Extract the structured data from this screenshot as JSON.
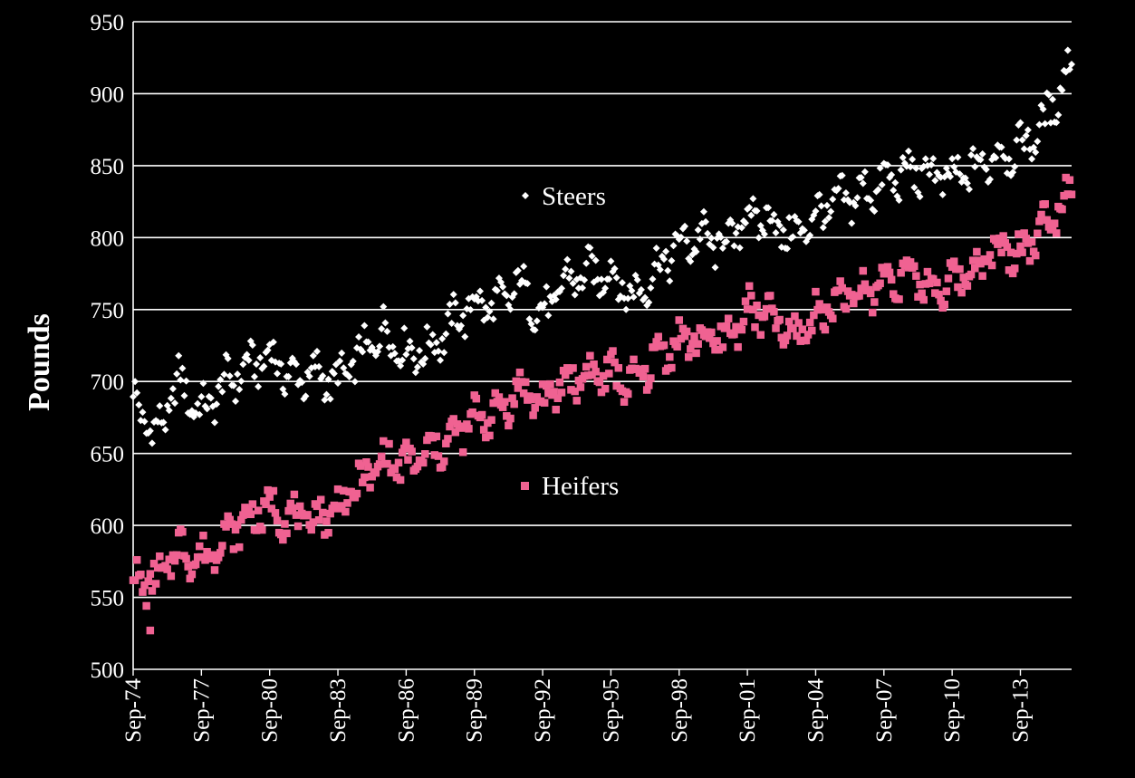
{
  "chart_data": {
    "type": "scatter",
    "ylabel": "Pounds",
    "ylim": [
      500,
      950
    ],
    "yticks": [
      "500",
      "550",
      "600",
      "650",
      "700",
      "750",
      "800",
      "850",
      "900",
      "950"
    ],
    "xticks": [
      "Sep-74",
      "Sep-77",
      "Sep-80",
      "Sep-83",
      "Sep-86",
      "Sep-89",
      "Sep-92",
      "Sep-95",
      "Sep-98",
      "Sep-01",
      "Sep-04",
      "Sep-07",
      "Sep-10",
      "Sep-13"
    ],
    "grid": true,
    "x": "Monthly, Sep-74 to Dec-15 (one point per month)",
    "series": [
      {
        "name": "Steers",
        "color": "#ffffff",
        "marker": "diamond",
        "legend_label": "Steers",
        "monthly_anchor_values": [
          [
            "Sep-74",
            688
          ],
          [
            "Sep-75",
            662
          ],
          [
            "Sep-76",
            700
          ],
          [
            "Sep-77",
            678
          ],
          [
            "Sep-78",
            698
          ],
          [
            "Sep-79",
            710
          ],
          [
            "Sep-80",
            718
          ],
          [
            "Sep-81",
            702
          ],
          [
            "Sep-82",
            705
          ],
          [
            "Sep-83",
            700
          ],
          [
            "Sep-84",
            718
          ],
          [
            "Sep-85",
            735
          ],
          [
            "Sep-86",
            720
          ],
          [
            "Sep-87",
            722
          ],
          [
            "Sep-88",
            740
          ],
          [
            "Sep-89",
            755
          ],
          [
            "Sep-90",
            752
          ],
          [
            "Sep-91",
            768
          ],
          [
            "Sep-92",
            745
          ],
          [
            "Sep-93",
            770
          ],
          [
            "Sep-94",
            775
          ],
          [
            "Sep-95",
            775
          ],
          [
            "Sep-96",
            758
          ],
          [
            "Sep-97",
            778
          ],
          [
            "Sep-98",
            795
          ],
          [
            "Sep-99",
            800
          ],
          [
            "Sep-00",
            795
          ],
          [
            "Sep-01",
            815
          ],
          [
            "Sep-02",
            812
          ],
          [
            "Sep-03",
            800
          ],
          [
            "Sep-04",
            815
          ],
          [
            "Sep-05",
            825
          ],
          [
            "Sep-06",
            830
          ],
          [
            "Sep-07",
            838
          ],
          [
            "Sep-08",
            845
          ],
          [
            "Sep-09",
            845
          ],
          [
            "Sep-10",
            840
          ],
          [
            "Sep-11",
            848
          ],
          [
            "Sep-12",
            858
          ],
          [
            "Sep-13",
            862
          ],
          [
            "Sep-14",
            878
          ],
          [
            "Sep-15",
            912
          ]
        ]
      },
      {
        "name": "Heifers",
        "color": "#f06292",
        "marker": "square",
        "legend_label": "Heifers",
        "monthly_anchor_values": [
          [
            "Sep-74",
            562
          ],
          [
            "Sep-75",
            560
          ],
          [
            "Sep-76",
            585
          ],
          [
            "Sep-77",
            575
          ],
          [
            "Sep-78",
            592
          ],
          [
            "Sep-79",
            605
          ],
          [
            "Sep-80",
            612
          ],
          [
            "Sep-81",
            605
          ],
          [
            "Sep-82",
            605
          ],
          [
            "Sep-83",
            612
          ],
          [
            "Sep-84",
            630
          ],
          [
            "Sep-85",
            645
          ],
          [
            "Sep-86",
            642
          ],
          [
            "Sep-87",
            650
          ],
          [
            "Sep-88",
            660
          ],
          [
            "Sep-89",
            675
          ],
          [
            "Sep-90",
            678
          ],
          [
            "Sep-91",
            695
          ],
          [
            "Sep-92",
            685
          ],
          [
            "Sep-93",
            700
          ],
          [
            "Sep-94",
            705
          ],
          [
            "Sep-95",
            705
          ],
          [
            "Sep-96",
            698
          ],
          [
            "Sep-97",
            718
          ],
          [
            "Sep-98",
            728
          ],
          [
            "Sep-99",
            730
          ],
          [
            "Sep-00",
            728
          ],
          [
            "Sep-01",
            750
          ],
          [
            "Sep-02",
            745
          ],
          [
            "Sep-03",
            730
          ],
          [
            "Sep-04",
            745
          ],
          [
            "Sep-05",
            758
          ],
          [
            "Sep-06",
            760
          ],
          [
            "Sep-07",
            770
          ],
          [
            "Sep-08",
            775
          ],
          [
            "Sep-09",
            765
          ],
          [
            "Sep-10",
            768
          ],
          [
            "Sep-11",
            780
          ],
          [
            "Sep-12",
            792
          ],
          [
            "Sep-13",
            790
          ],
          [
            "Sep-14",
            808
          ],
          [
            "Sep-15",
            830
          ]
        ],
        "outliers": [
          [
            "Jun-75",
            527
          ]
        ]
      }
    ]
  },
  "colors": {
    "background": "#000000",
    "grid": "#ffffff",
    "steers": "#ffffff",
    "heifers": "#f06292"
  }
}
